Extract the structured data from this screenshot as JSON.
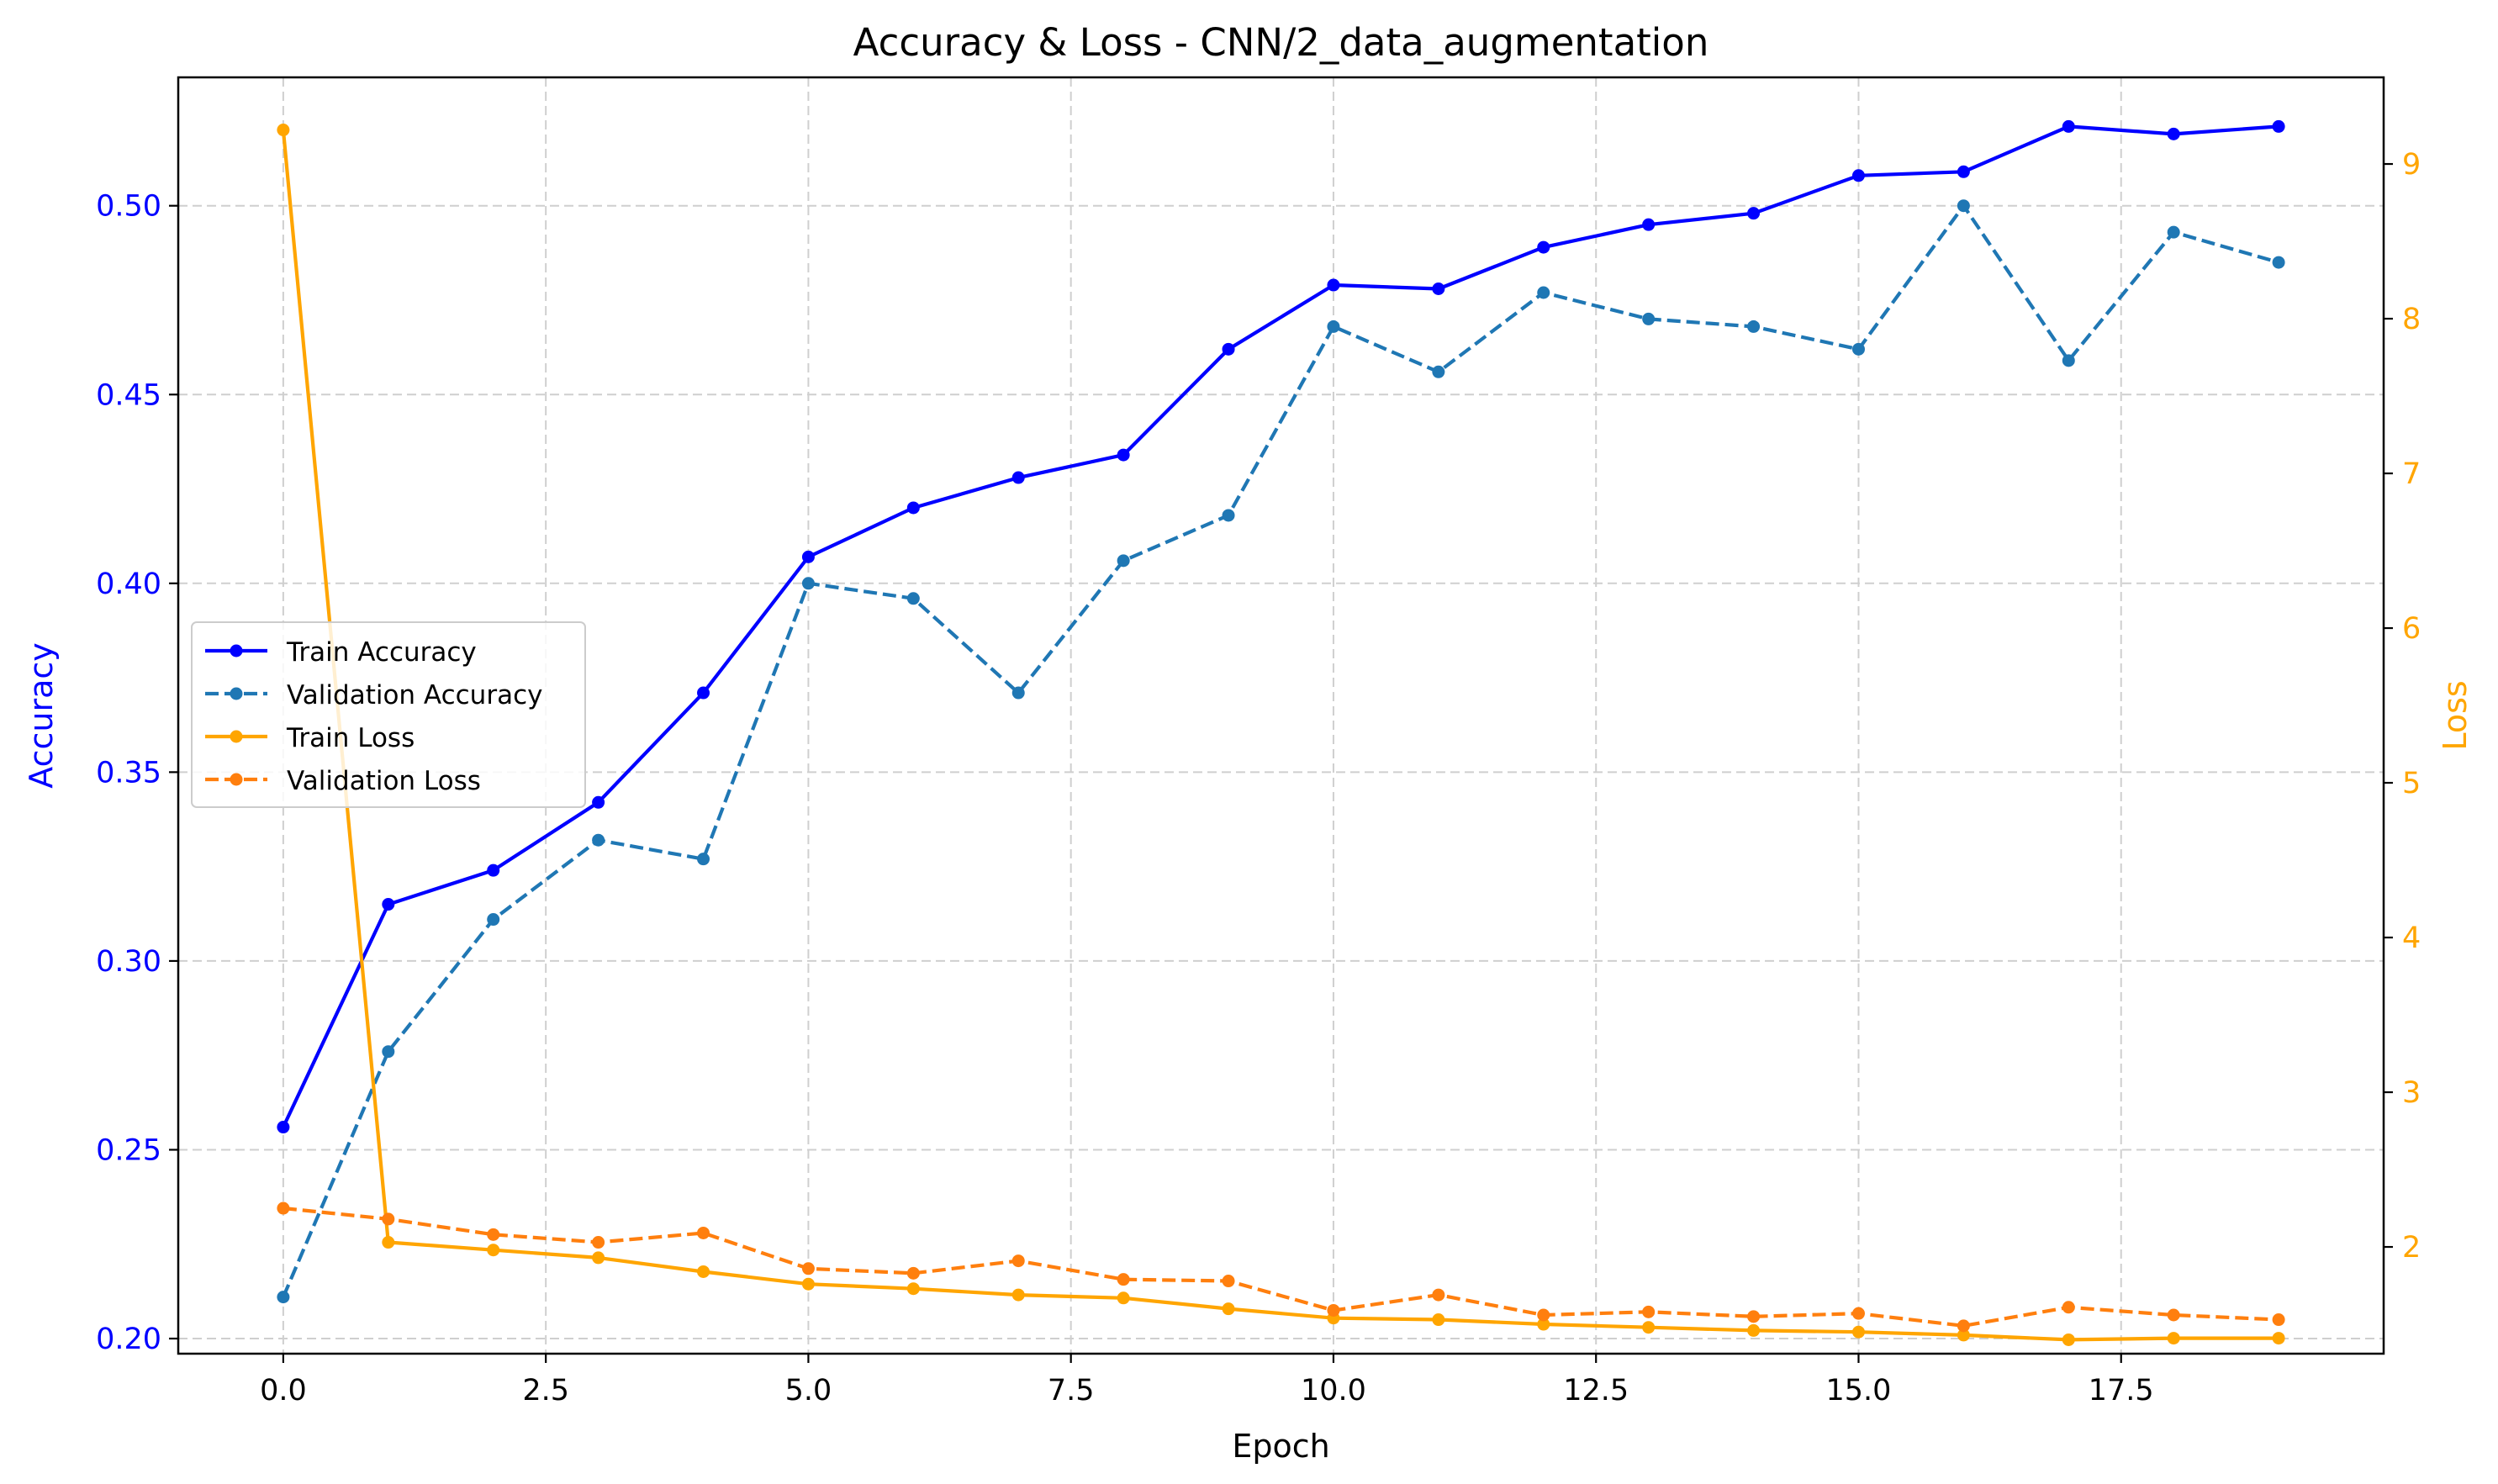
{
  "chart_data": {
    "type": "line",
    "title": "Accuracy & Loss - CNN/2_data_augmentation",
    "xlabel": "Epoch",
    "ylabel_left": "Accuracy",
    "ylabel_right": "Loss",
    "xlim": [
      -1,
      20
    ],
    "ylim_left": [
      0.196,
      0.534
    ],
    "ylim_right": [
      1.31,
      9.56
    ],
    "x_ticks": [
      0.0,
      2.5,
      5.0,
      7.5,
      10.0,
      12.5,
      15.0,
      17.5
    ],
    "y_ticks_left": [
      0.2,
      0.25,
      0.3,
      0.35,
      0.4,
      0.45,
      0.5
    ],
    "y_ticks_right": [
      2,
      3,
      4,
      5,
      6,
      7,
      8,
      9
    ],
    "grid": true,
    "legend_position": "center-left",
    "x": [
      0,
      1,
      2,
      3,
      4,
      5,
      6,
      7,
      8,
      9,
      10,
      11,
      12,
      13,
      14,
      15,
      16,
      17,
      18,
      19
    ],
    "series": [
      {
        "name": "Train Accuracy",
        "axis": "left",
        "color": "#0000ff",
        "dashed": false,
        "values": [
          0.256,
          0.315,
          0.324,
          0.342,
          0.371,
          0.407,
          0.42,
          0.428,
          0.434,
          0.462,
          0.479,
          0.478,
          0.489,
          0.495,
          0.498,
          0.508,
          0.509,
          0.521,
          0.519,
          0.521
        ]
      },
      {
        "name": "Validation Accuracy",
        "axis": "left",
        "color": "#1f77b4",
        "dashed": true,
        "values": [
          0.211,
          0.276,
          0.311,
          0.332,
          0.327,
          0.4,
          0.396,
          0.371,
          0.406,
          0.418,
          0.468,
          0.456,
          0.477,
          0.47,
          0.468,
          0.462,
          0.5,
          0.459,
          0.493,
          0.485
        ]
      },
      {
        "name": "Train Loss",
        "axis": "right",
        "color": "#ffa500",
        "dashed": false,
        "values": [
          9.22,
          2.03,
          1.98,
          1.93,
          1.84,
          1.76,
          1.73,
          1.69,
          1.67,
          1.6,
          1.54,
          1.53,
          1.5,
          1.48,
          1.46,
          1.45,
          1.43,
          1.4,
          1.41,
          1.41
        ]
      },
      {
        "name": "Validation Loss",
        "axis": "right",
        "color": "#ff7f0e",
        "dashed": true,
        "values": [
          2.25,
          2.18,
          2.08,
          2.03,
          2.09,
          1.86,
          1.83,
          1.91,
          1.79,
          1.78,
          1.59,
          1.69,
          1.56,
          1.58,
          1.55,
          1.57,
          1.49,
          1.61,
          1.56,
          1.53
        ]
      }
    ]
  }
}
